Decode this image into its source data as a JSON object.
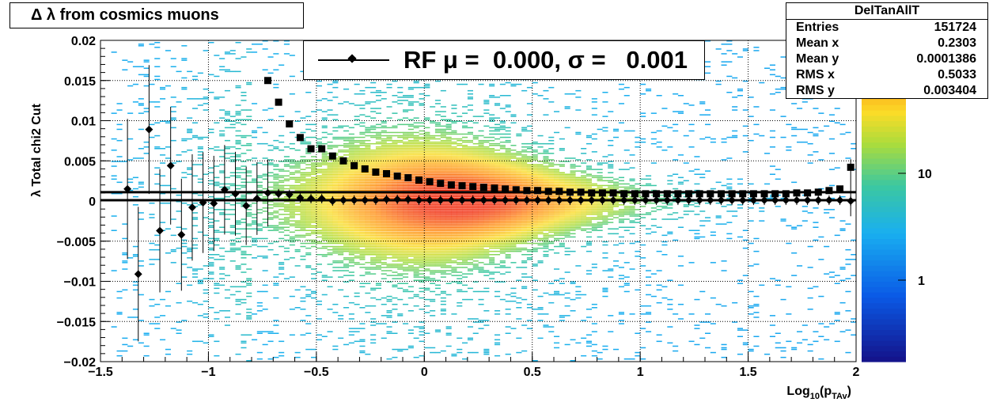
{
  "title": "Δ λ from cosmics muons",
  "legend": {
    "label": "RF μ =  0.000, σ =   0.001"
  },
  "stats": {
    "name": "DelTanAllT",
    "rows": [
      {
        "label": "Entries",
        "value": "151724"
      },
      {
        "label": "Mean x",
        "value": "0.2303"
      },
      {
        "label": "Mean y",
        "value": "0.0001386"
      },
      {
        "label": "RMS x",
        "value": "0.5033"
      },
      {
        "label": "RMS y",
        "value": "0.003404"
      }
    ]
  },
  "chart_data": {
    "type": "heatmap",
    "xlabel": "Log10(pTAv)",
    "ylabel": "λ  Total chi2 Cut",
    "xlim": [
      -1.5,
      2
    ],
    "ylim": [
      -0.02,
      0.02
    ],
    "grid": true,
    "x_ticks": [
      "−1.5",
      "−1",
      "−0.5",
      "0",
      "0.5",
      "1",
      "1.5",
      "2"
    ],
    "y_ticks": [
      "0.02",
      "0.015",
      "0.01",
      "0.005",
      "0",
      "−0.005",
      "−0.01",
      "−0.015",
      "−0.02"
    ],
    "colorbar": {
      "scale": "log",
      "tick_labels": [
        "1",
        "10"
      ],
      "tick_values": [
        1,
        10
      ]
    },
    "colors": {
      "high": "#ff3300",
      "mid": "#ffd21e",
      "low": "#18aaf0",
      "markers": "#000000"
    },
    "series": [
      {
        "marker": "square",
        "x": [
          -0.725,
          -0.675,
          -0.625,
          -0.575,
          -0.525,
          -0.475,
          -0.425,
          -0.375,
          -0.325,
          -0.275,
          -0.225,
          -0.175,
          -0.125,
          -0.075,
          -0.025,
          0.025,
          0.075,
          0.125,
          0.175,
          0.225,
          0.275,
          0.325,
          0.375,
          0.425,
          0.475,
          0.525,
          0.575,
          0.625,
          0.675,
          0.725,
          0.775,
          0.825,
          0.875,
          0.925,
          0.975,
          1.025,
          1.075,
          1.125,
          1.175,
          1.225,
          1.275,
          1.325,
          1.375,
          1.425,
          1.475,
          1.525,
          1.575,
          1.625,
          1.675,
          1.725,
          1.775,
          1.825,
          1.875,
          1.925,
          1.975
        ],
        "y": [
          0.015,
          0.0123,
          0.0096,
          0.0079,
          0.0065,
          0.0065,
          0.0056,
          0.005,
          0.0044,
          0.004,
          0.0036,
          0.0034,
          0.0031,
          0.0029,
          0.0026,
          0.0024,
          0.0022,
          0.002,
          0.0019,
          0.0018,
          0.0017,
          0.0016,
          0.0015,
          0.0014,
          0.0013,
          0.0013,
          0.0012,
          0.0012,
          0.0011,
          0.0011,
          0.001,
          0.001,
          0.001,
          0.0009,
          0.0009,
          0.0009,
          0.0009,
          0.0009,
          0.0009,
          0.0009,
          0.0009,
          0.0009,
          0.0009,
          0.0009,
          0.0009,
          0.0009,
          0.0009,
          0.0009,
          0.0009,
          0.001,
          0.001,
          0.0011,
          0.0013,
          0.0015,
          0.0042
        ]
      },
      {
        "marker": "diamond",
        "x": [
          -1.375,
          -1.325,
          -1.275,
          -1.225,
          -1.175,
          -1.125,
          -1.075,
          -1.025,
          -0.975,
          -0.925,
          -0.875,
          -0.825,
          -0.775,
          -0.725,
          -0.675,
          -0.625,
          -0.575,
          -0.525,
          -0.475,
          -0.425,
          -0.375,
          -0.325,
          -0.275,
          -0.225,
          -0.175,
          -0.125,
          -0.075,
          -0.025,
          0.025,
          0.075,
          0.125,
          0.175,
          0.225,
          0.275,
          0.325,
          0.375,
          0.425,
          0.475,
          0.525,
          0.575,
          0.625,
          0.675,
          0.725,
          0.775,
          0.825,
          0.875,
          0.925,
          0.975,
          1.025,
          1.075,
          1.125,
          1.175,
          1.225,
          1.275,
          1.325,
          1.375,
          1.425,
          1.475,
          1.525,
          1.575,
          1.625,
          1.675,
          1.725,
          1.775,
          1.825,
          1.875,
          1.925,
          1.975
        ],
        "y": [
          0.0015,
          -0.0091,
          0.0089,
          -0.0037,
          0.0044,
          -0.0042,
          -0.0008,
          -0.0002,
          -0.0003,
          0.0014,
          0.0009,
          -0.0006,
          0.0003,
          0.001,
          0.0009,
          0.0008,
          0.0004,
          0.0003,
          0.0003,
          0.0,
          0.0001,
          0.0001,
          0.0001,
          0.0001,
          0.0002,
          0.0002,
          0.0002,
          0.0001,
          0.0001,
          0.0001,
          0.0001,
          0.0001,
          0.0001,
          0.0001,
          0.0001,
          0.0001,
          0.0001,
          0.0001,
          0.0001,
          0.0001,
          0.0001,
          0.0001,
          0.0001,
          0.0001,
          0.0001,
          0.0001,
          0.0001,
          0.0001,
          0.0001,
          0.0001,
          0.0001,
          0.0001,
          0.0001,
          0.0001,
          0.0001,
          0.0001,
          0.0001,
          0.0001,
          0.0001,
          0.0001,
          0.0001,
          0.0001,
          0.0001,
          0.0001,
          0.0001,
          0.0001,
          0.0001,
          0.0
        ]
      }
    ],
    "fit_lines": [
      0.0011,
      0.0001
    ]
  }
}
